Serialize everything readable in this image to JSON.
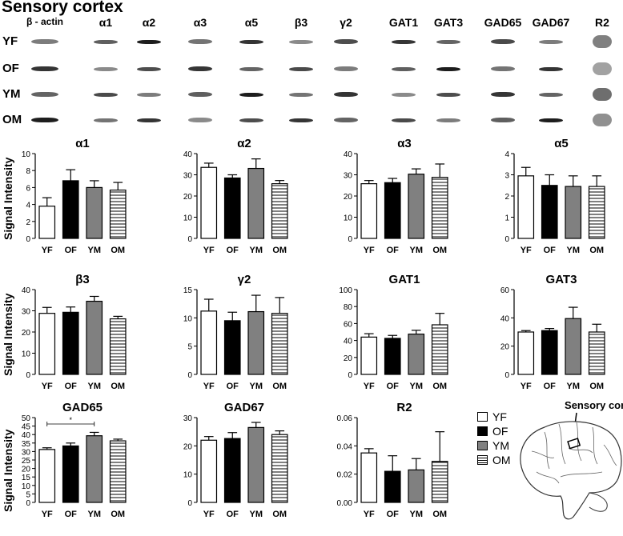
{
  "title": "Sensory cortex",
  "blot": {
    "columns": [
      "β - actin",
      "α1",
      "α2",
      "α3",
      "α5",
      "β3",
      "γ2",
      "GAT1",
      "GAT3",
      "GAD65",
      "GAD67",
      "R2"
    ],
    "rows": [
      "YF",
      "OF",
      "YM",
      "OM"
    ]
  },
  "y_axis_label": "Signal Intensity",
  "legend": [
    {
      "label": "YF",
      "pattern": "white"
    },
    {
      "label": "OF",
      "pattern": "black"
    },
    {
      "label": "YM",
      "pattern": "gray"
    },
    {
      "label": "OM",
      "pattern": "stripes"
    }
  ],
  "colors": {
    "OF": "#000000",
    "YM": "#808080",
    "YF": "#ffffff",
    "OM_stripe": "#000000"
  },
  "brain_label": "Sensory cortex",
  "chart_data": [
    {
      "type": "bar",
      "title": "α1",
      "categories": [
        "YF",
        "OF",
        "YM",
        "OM"
      ],
      "values": [
        3.8,
        6.8,
        6.0,
        5.7
      ],
      "errors": [
        1.0,
        1.3,
        0.8,
        0.9
      ],
      "ylim": [
        0,
        10
      ],
      "yticks": [
        "0",
        "2",
        "4",
        "6",
        "8",
        "10"
      ]
    },
    {
      "type": "bar",
      "title": "α2",
      "categories": [
        "YF",
        "OF",
        "YM",
        "OM"
      ],
      "values": [
        33.5,
        28.5,
        33.0,
        25.8
      ],
      "errors": [
        2.0,
        1.5,
        4.5,
        1.5
      ],
      "ylim": [
        0,
        40
      ],
      "yticks": [
        "0",
        "10",
        "20",
        "30",
        "40"
      ]
    },
    {
      "type": "bar",
      "title": "α3",
      "categories": [
        "YF",
        "OF",
        "YM",
        "OM"
      ],
      "values": [
        25.8,
        26.3,
        30.3,
        28.8
      ],
      "errors": [
        1.5,
        2.0,
        2.5,
        6.3
      ],
      "ylim": [
        0,
        40
      ],
      "yticks": [
        "0",
        "10",
        "20",
        "30",
        "40"
      ]
    },
    {
      "type": "bar",
      "title": "α5",
      "categories": [
        "YF",
        "OF",
        "YM",
        "OM"
      ],
      "values": [
        2.95,
        2.5,
        2.45,
        2.45
      ],
      "errors": [
        0.4,
        0.5,
        0.5,
        0.5
      ],
      "ylim": [
        0,
        4
      ],
      "yticks": [
        "0",
        "1",
        "2",
        "3",
        "4"
      ]
    },
    {
      "type": "bar",
      "title": "β3",
      "categories": [
        "YF",
        "OF",
        "YM",
        "OM"
      ],
      "values": [
        28.8,
        29.3,
        34.5,
        26.2
      ],
      "errors": [
        2.8,
        2.5,
        2.3,
        1.2
      ],
      "ylim": [
        0,
        40
      ],
      "yticks": [
        "0",
        "10",
        "20",
        "30",
        "40"
      ]
    },
    {
      "type": "bar",
      "title": "γ2",
      "categories": [
        "YF",
        "OF",
        "YM",
        "OM"
      ],
      "values": [
        11.2,
        9.5,
        11.1,
        10.8
      ],
      "errors": [
        2.1,
        1.5,
        2.9,
        2.8
      ],
      "ylim": [
        0,
        15
      ],
      "yticks": [
        "0",
        "5",
        "10",
        "15"
      ]
    },
    {
      "type": "bar",
      "title": "GAT1",
      "categories": [
        "YF",
        "OF",
        "YM",
        "OM"
      ],
      "values": [
        44.0,
        42.5,
        47.5,
        58.5
      ],
      "errors": [
        4.0,
        3.5,
        4.5,
        13.5
      ],
      "ylim": [
        0,
        100
      ],
      "yticks": [
        "0",
        "20",
        "40",
        "60",
        "80",
        "100"
      ]
    },
    {
      "type": "bar",
      "title": "GAT3",
      "categories": [
        "YF",
        "OF",
        "YM",
        "OM"
      ],
      "values": [
        30.0,
        31.0,
        39.5,
        30.0
      ],
      "errors": [
        1.0,
        1.5,
        8.0,
        5.5
      ],
      "ylim": [
        0,
        60
      ],
      "yticks": [
        "0",
        "20",
        "40",
        "60"
      ]
    },
    {
      "type": "bar",
      "title": "GAD65",
      "categories": [
        "YF",
        "OF",
        "YM",
        "OM"
      ],
      "values": [
        31.2,
        33.3,
        39.3,
        36.3
      ],
      "errors": [
        1.0,
        1.7,
        2.0,
        1.0
      ],
      "ylim": [
        0,
        50
      ],
      "yticks": [
        "0",
        "5",
        "10",
        "15",
        "20",
        "25",
        "30",
        "35",
        "40",
        "45",
        "50"
      ],
      "annotation": "*"
    },
    {
      "type": "bar",
      "title": "GAD67",
      "categories": [
        "YF",
        "OF",
        "YM",
        "OM"
      ],
      "values": [
        22.0,
        22.6,
        26.5,
        24.0
      ],
      "errors": [
        1.3,
        2.1,
        1.8,
        1.3
      ],
      "ylim": [
        0,
        30
      ],
      "yticks": [
        "0",
        "10",
        "20",
        "30"
      ]
    },
    {
      "type": "bar",
      "title": "R2",
      "categories": [
        "YF",
        "OF",
        "YM",
        "OM"
      ],
      "values": [
        0.035,
        0.022,
        0.023,
        0.029
      ],
      "errors": [
        0.003,
        0.011,
        0.008,
        0.021
      ],
      "ylim": [
        0,
        0.06
      ],
      "yticks": [
        "0.00",
        "0.02",
        "0.04",
        "0.06"
      ]
    }
  ]
}
